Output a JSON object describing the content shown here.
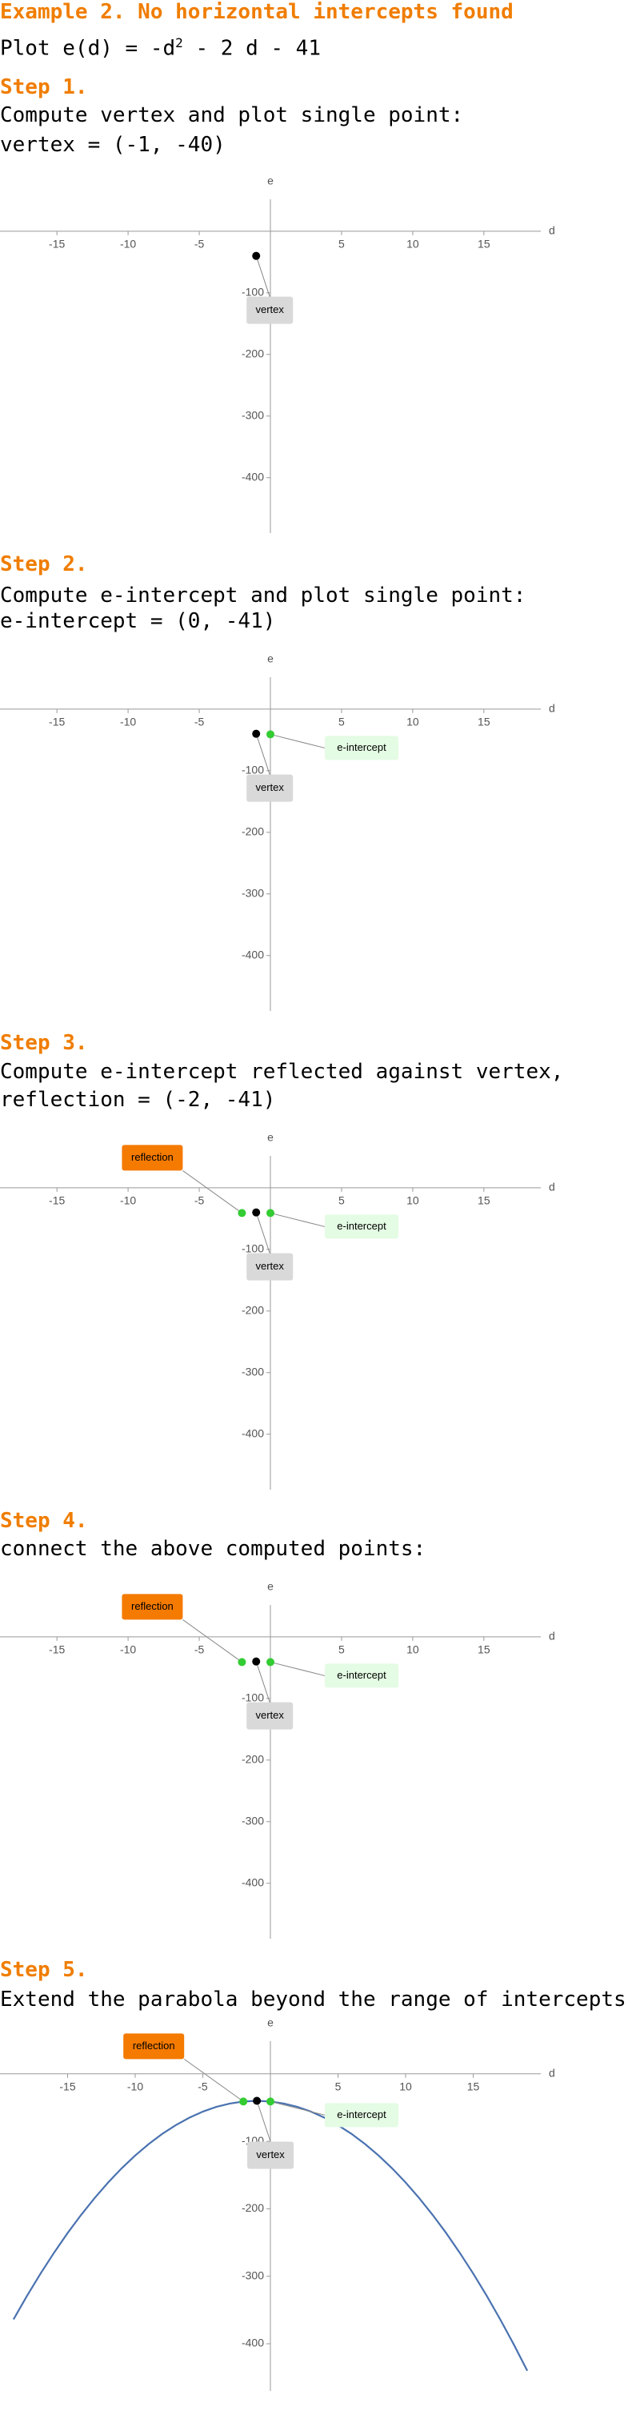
{
  "title": "Example 2. No horizontal intercepts found",
  "formula": [
    "Plot e(d) = -d",
    "2",
    " - 2 d - 41"
  ],
  "steps": [
    {
      "heading": "Step 1.",
      "lines": [
        "Compute vertex and plot single point:",
        "vertex = (-1, -40)"
      ]
    },
    {
      "heading": "Step 2.",
      "lines": [
        "Compute e-intercept and plot single point:",
        "e-intercept = (0, -41)"
      ]
    },
    {
      "heading": "Step 3.",
      "lines": [
        "Compute e-intercept reflected against vertex,",
        "reflection = (-2, -41)"
      ]
    },
    {
      "heading": "Step 4.",
      "lines": [
        "connect the above computed points:"
      ]
    },
    {
      "heading": "Step 5.",
      "lines": [
        "Extend the parabola beyond the range of intercepts"
      ]
    }
  ],
  "chart_data": [
    {
      "type": "scatter",
      "x_label": "d",
      "y_label": "e",
      "xlim": [
        -19,
        19
      ],
      "ylim": [
        -490,
        70
      ],
      "xticks": [
        -15,
        -10,
        -5,
        5,
        10,
        15
      ],
      "yticks": [
        -100,
        -200,
        -300,
        -400
      ],
      "points": [
        {
          "label": "vertex",
          "x": -1,
          "y": -40,
          "color": "#000000",
          "label_color": "#d9d9d9"
        }
      ]
    },
    {
      "type": "scatter",
      "x_label": "d",
      "y_label": "e",
      "xlim": [
        -19,
        19
      ],
      "ylim": [
        -490,
        70
      ],
      "xticks": [
        -15,
        -10,
        -5,
        5,
        10,
        15
      ],
      "yticks": [
        -100,
        -200,
        -300,
        -400
      ],
      "points": [
        {
          "label": "vertex",
          "x": -1,
          "y": -40,
          "color": "#000000",
          "label_color": "#d9d9d9"
        },
        {
          "label": "e-intercept",
          "x": 0,
          "y": -41,
          "color": "#33cc33",
          "label_color": "#e4fbe4"
        }
      ]
    },
    {
      "type": "scatter",
      "x_label": "d",
      "y_label": "e",
      "xlim": [
        -19,
        19
      ],
      "ylim": [
        -490,
        70
      ],
      "xticks": [
        -15,
        -10,
        -5,
        5,
        10,
        15
      ],
      "yticks": [
        -100,
        -200,
        -300,
        -400
      ],
      "points": [
        {
          "label": "vertex",
          "x": -1,
          "y": -40,
          "color": "#000000",
          "label_color": "#d9d9d9"
        },
        {
          "label": "e-intercept",
          "x": 0,
          "y": -41,
          "color": "#33cc33",
          "label_color": "#e4fbe4"
        },
        {
          "label": "reflection",
          "x": -2,
          "y": -41,
          "color": "#33cc33",
          "label_color": "#f47a00"
        }
      ]
    },
    {
      "type": "scatter",
      "x_label": "d",
      "y_label": "e",
      "xlim": [
        -19,
        19
      ],
      "ylim": [
        -490,
        70
      ],
      "xticks": [
        -15,
        -10,
        -5,
        5,
        10,
        15
      ],
      "yticks": [
        -100,
        -200,
        -300,
        -400
      ],
      "points": [
        {
          "label": "vertex",
          "x": -1,
          "y": -40,
          "color": "#000000",
          "label_color": "#d9d9d9"
        },
        {
          "label": "e-intercept",
          "x": 0,
          "y": -41,
          "color": "#33cc33",
          "label_color": "#e4fbe4"
        },
        {
          "label": "reflection",
          "x": -2,
          "y": -41,
          "color": "#33cc33",
          "label_color": "#f47a00"
        }
      ]
    },
    {
      "type": "line",
      "x_label": "d",
      "y_label": "e",
      "xlim": [
        -20,
        20
      ],
      "ylim": [
        -470,
        65
      ],
      "xticks": [
        -15,
        -10,
        -5,
        5,
        10,
        15
      ],
      "yticks": [
        -100,
        -200,
        -300,
        -400
      ],
      "points": [
        {
          "label": "vertex",
          "x": -1,
          "y": -40,
          "color": "#000000",
          "label_color": "#d9d9d9"
        },
        {
          "label": "e-intercept",
          "x": 0,
          "y": -41,
          "color": "#33cc33",
          "label_color": "#e4fbe4"
        },
        {
          "label": "reflection",
          "x": -2,
          "y": -41,
          "color": "#33cc33",
          "label_color": "#f47a00"
        }
      ],
      "curve": {
        "color": "#4a72b0",
        "x": [
          -19,
          -18,
          -17,
          -16,
          -15,
          -14,
          -13,
          -12,
          -11,
          -10,
          -9,
          -8,
          -7,
          -6,
          -5,
          -4,
          -3,
          -2,
          -1,
          0,
          1,
          2,
          3,
          4,
          5,
          6,
          7,
          8,
          9,
          10,
          11,
          12,
          13,
          14,
          15,
          16,
          17,
          18,
          19
        ],
        "y": [
          -364,
          -329,
          -296,
          -265,
          -236,
          -209,
          -184,
          -161,
          -140,
          -121,
          -104,
          -89,
          -76,
          -65,
          -56,
          -49,
          -44,
          -41,
          -40,
          -41,
          -44,
          -49,
          -56,
          -65,
          -76,
          -89,
          -104,
          -121,
          -140,
          -161,
          -184,
          -209,
          -236,
          -265,
          -296,
          -329,
          -364,
          -401,
          -440
        ]
      }
    }
  ]
}
